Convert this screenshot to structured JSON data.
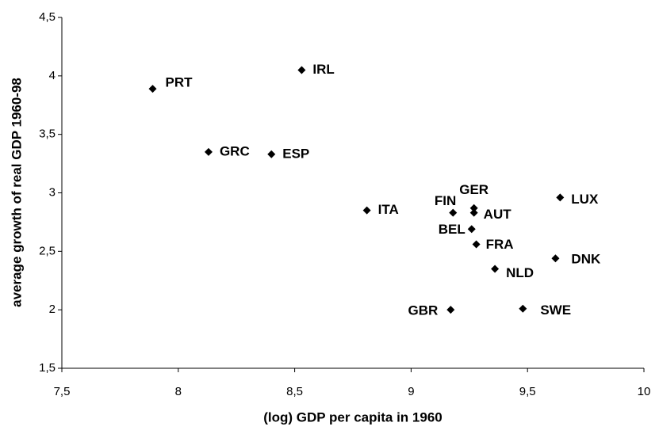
{
  "chart_data": {
    "type": "scatter",
    "x_label": "(log) GDP per capita in 1960",
    "y_label": "average growth of real GDP 1960-98",
    "labels": [
      "PRT",
      "IRL",
      "GRC",
      "ESP",
      "ITA",
      "FIN",
      "GER",
      "AUT",
      "LUX",
      "BEL",
      "FRA",
      "DNK",
      "NLD",
      "GBR",
      "SWE"
    ],
    "x": [
      7.89,
      8.53,
      8.13,
      8.4,
      8.81,
      9.18,
      9.27,
      9.27,
      9.64,
      9.26,
      9.28,
      9.62,
      9.36,
      9.17,
      9.48
    ],
    "values": [
      3.89,
      4.05,
      3.35,
      3.33,
      2.85,
      2.83,
      2.87,
      2.83,
      2.96,
      2.69,
      2.56,
      2.44,
      2.35,
      2.0,
      2.01
    ],
    "color": "#000000",
    "xlim": [
      7.5,
      10
    ],
    "xticks": [
      {
        "value": 7.5,
        "label": "7,5"
      },
      8,
      {
        "value": 8.5,
        "label": "8,5"
      },
      9,
      {
        "value": 9.5,
        "label": "9,5"
      },
      10
    ],
    "ylim": [
      1.5,
      4.5
    ],
    "yticks": [
      {
        "value": 1.5,
        "label": "1,5"
      },
      2,
      {
        "value": 2.5,
        "label": "2,5"
      },
      3,
      {
        "value": 3.5,
        "label": "3,5"
      },
      4,
      {
        "value": 4.5,
        "label": "4,5"
      }
    ],
    "grid": false
  }
}
